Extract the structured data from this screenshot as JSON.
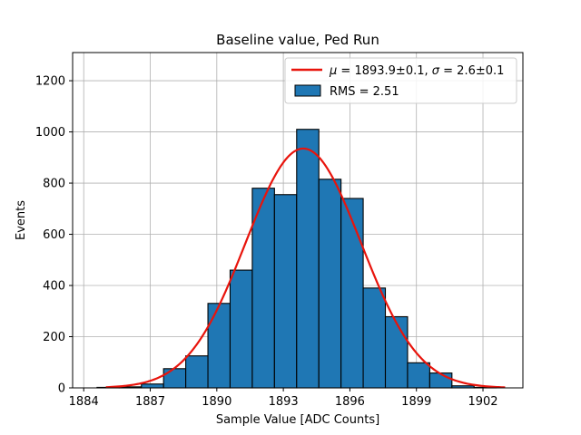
{
  "chart_data": {
    "type": "bar",
    "title": "Baseline value, Ped Run",
    "xlabel": "Sample Value [ADC Counts]",
    "ylabel": "Events",
    "xlim": [
      1883.5,
      1903.8
    ],
    "ylim": [
      0,
      1310
    ],
    "xticks": [
      1884,
      1887,
      1890,
      1893,
      1896,
      1899,
      1902
    ],
    "yticks": [
      0,
      200,
      400,
      600,
      800,
      1000,
      1200
    ],
    "grid": true,
    "legend_position": "top-right",
    "histogram": {
      "name": "RMS = 2.51",
      "color": "#1f77b4",
      "edgecolor": "#000000",
      "bins": [
        {
          "x0": 1884.6,
          "x1": 1885.6,
          "value": 2
        },
        {
          "x0": 1885.6,
          "x1": 1886.6,
          "value": 4
        },
        {
          "x0": 1886.6,
          "x1": 1887.6,
          "value": 15
        },
        {
          "x0": 1887.6,
          "x1": 1888.6,
          "value": 75
        },
        {
          "x0": 1888.6,
          "x1": 1889.6,
          "value": 125
        },
        {
          "x0": 1889.6,
          "x1": 1890.6,
          "value": 330
        },
        {
          "x0": 1890.6,
          "x1": 1891.6,
          "value": 460
        },
        {
          "x0": 1891.6,
          "x1": 1892.6,
          "value": 780
        },
        {
          "x0": 1892.6,
          "x1": 1893.6,
          "value": 755
        },
        {
          "x0": 1893.6,
          "x1": 1894.6,
          "value": 1010
        },
        {
          "x0": 1894.6,
          "x1": 1895.6,
          "value": 815
        },
        {
          "x0": 1895.6,
          "x1": 1896.6,
          "value": 740
        },
        {
          "x0": 1896.6,
          "x1": 1897.6,
          "value": 390
        },
        {
          "x0": 1897.6,
          "x1": 1898.6,
          "value": 278
        },
        {
          "x0": 1898.6,
          "x1": 1899.6,
          "value": 98
        },
        {
          "x0": 1899.6,
          "x1": 1900.6,
          "value": 58
        },
        {
          "x0": 1900.6,
          "x1": 1901.6,
          "value": 8
        },
        {
          "x0": 1901.6,
          "x1": 1902.6,
          "value": 2
        }
      ]
    },
    "fit": {
      "name": "$\\mu = 1893.9\\pm0.1$, $\\sigma = 2.6\\pm0.1$",
      "legend_parts": {
        "mu_symbol": "μ",
        "mu_text": " = 1893.9±0.1, ",
        "sigma_symbol": "σ",
        "sigma_text": " = 2.6±0.1"
      },
      "color": "#e8140c",
      "amplitude": 935,
      "mu": 1893.9,
      "sigma": 2.6,
      "x_range": [
        1885.0,
        1903.0
      ]
    }
  }
}
